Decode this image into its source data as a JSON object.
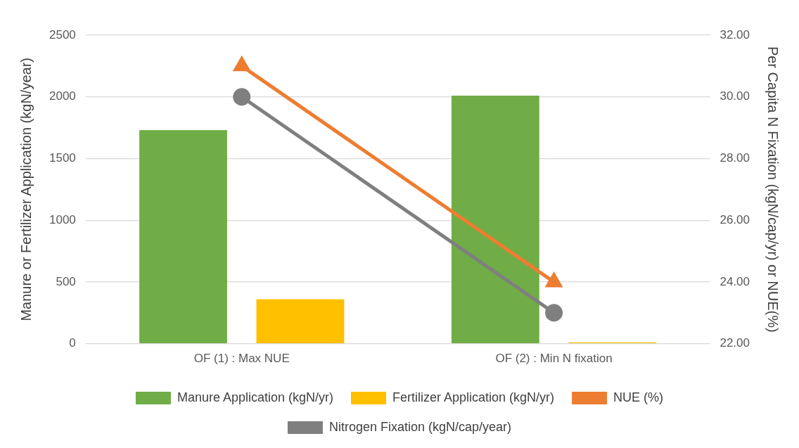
{
  "chart_data": {
    "type": "bar",
    "categories": [
      "OF (1) : Max NUE",
      "OF (2) : Min N fixation"
    ],
    "ylabel": "Manure or Fertilizer Application (kgN/year)",
    "y2label": "Per Capita N Fixation (kgN/cap/yr) or NUE(%)",
    "series": [
      {
        "name": "Manure Application (kgN/yr)",
        "color": "#70ad47",
        "values": [
          1730,
          2010
        ]
      },
      {
        "name": "Fertilizer Application (kgN/yr)",
        "color": "#ffc000",
        "values": [
          360,
          10
        ]
      },
      {
        "name": "NUE (%)",
        "type": "line",
        "axis": "y2",
        "color": "#ed7d31",
        "marker": "triangle",
        "values": [
          31,
          24
        ]
      },
      {
        "name": "Nitrogen Fixation (kgN/cap/year)",
        "type": "line",
        "axis": "y2",
        "color": "#7f7f7f",
        "marker": "circle",
        "values": [
          30,
          23
        ]
      }
    ],
    "ylim": [
      0,
      2500
    ],
    "yticks": [
      0,
      500,
      1000,
      1500,
      2000,
      2500
    ],
    "y2lim": [
      22,
      32
    ],
    "y2ticks": [
      {
        "value": 22,
        "label": "22.00"
      },
      {
        "value": 24,
        "label": "24.00"
      },
      {
        "value": 26,
        "label": "26.00"
      },
      {
        "value": 28,
        "label": "28.00"
      },
      {
        "value": 30,
        "label": "30.00"
      },
      {
        "value": 32,
        "label": "32.00"
      }
    ],
    "grid": "y",
    "legend": "bottom"
  }
}
